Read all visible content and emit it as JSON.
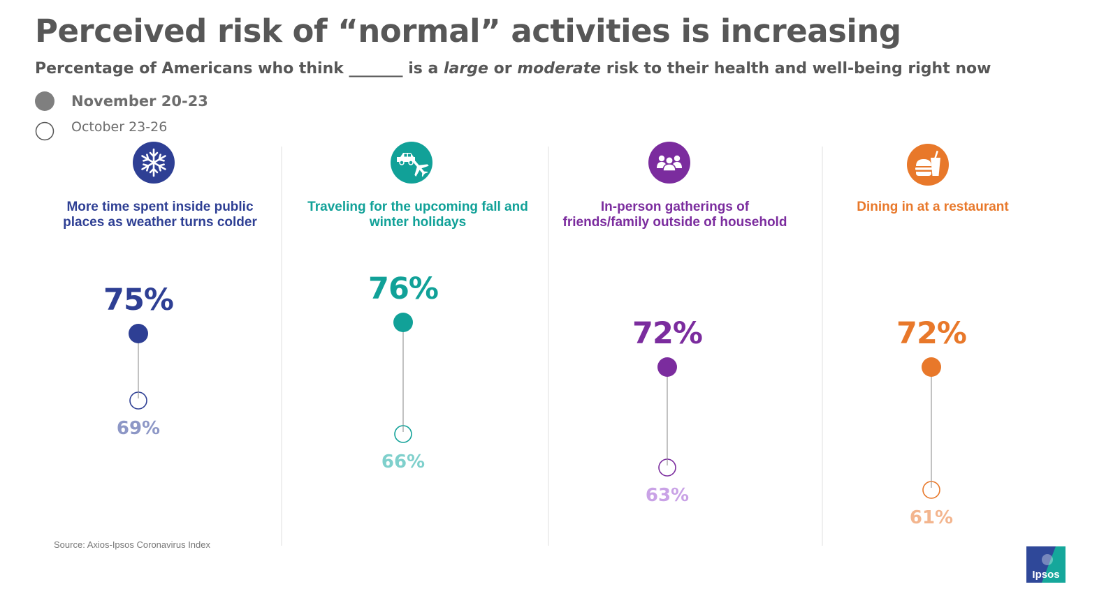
{
  "title": "Perceived risk of “normal” activities is increasing",
  "subtitle": {
    "before": "Percentage of Americans who think _______ is a ",
    "large": "large",
    "or": " or ",
    "moderate": "moderate",
    "after": " risk to their health and well-being right now"
  },
  "legend": {
    "current": "November 20-23",
    "prior": "October 23-26"
  },
  "source": "Source: Axios-Ipsos Coronavirus Index",
  "logo_text": "Ipsos",
  "colors": {
    "text_gray": "#575757",
    "divider": "#e4e4e4",
    "connector": "#a0a0a0",
    "logo_dark": "#2f4899",
    "logo_teal": "#15a79b"
  },
  "chart_data": {
    "type": "dumbbell",
    "title": "Perceived risk of “normal” activities is increasing",
    "ylabel": "Percentage of Americans who think it is a large or moderate risk",
    "series_names": [
      "November 20-23",
      "October 23-26"
    ],
    "ylim": [
      60,
      76
    ],
    "categories": [
      {
        "label": "More time spent inside public places as weather turns colder",
        "label_lines": [
          "More time spent inside public",
          "places as weather turns colder"
        ],
        "icon": "snowflake-icon",
        "current": 75,
        "prior": 69,
        "current_text": "75%",
        "prior_text": "69%",
        "color": "#2e3f94",
        "light_color": "#8d97c6"
      },
      {
        "label": "Traveling for the upcoming fall and winter holidays",
        "label_lines": [
          "Traveling for the upcoming fall and",
          "winter holidays"
        ],
        "icon": "car-plane-icon",
        "current": 76,
        "prior": 66,
        "current_text": "76%",
        "prior_text": "66%",
        "color": "#11a198",
        "light_color": "#7fd0cc"
      },
      {
        "label": "In-person gatherings of friends/family outside of household",
        "label_lines": [
          "In-person gatherings of",
          "friends/family outside of household"
        ],
        "icon": "people-group-icon",
        "current": 72,
        "prior": 63,
        "current_text": "72%",
        "prior_text": "63%",
        "color": "#7b2c9e",
        "light_color": "#c9a2e6"
      },
      {
        "label": "Dining in at a restaurant",
        "label_lines": [
          "Dining in at a restaurant"
        ],
        "icon": "fast-food-icon",
        "current": 72,
        "prior": 61,
        "current_text": "72%",
        "prior_text": "61%",
        "color": "#e8782a",
        "light_color": "#f3b58e"
      }
    ]
  }
}
